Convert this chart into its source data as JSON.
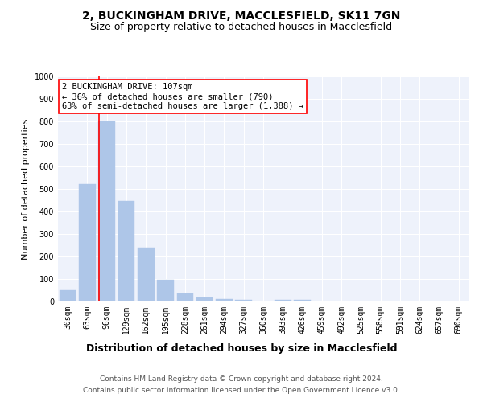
{
  "title1": "2, BUCKINGHAM DRIVE, MACCLESFIELD, SK11 7GN",
  "title2": "Size of property relative to detached houses in Macclesfield",
  "xlabel": "Distribution of detached houses by size in Macclesfield",
  "ylabel": "Number of detached properties",
  "categories": [
    "30sqm",
    "63sqm",
    "96sqm",
    "129sqm",
    "162sqm",
    "195sqm",
    "228sqm",
    "261sqm",
    "294sqm",
    "327sqm",
    "360sqm",
    "393sqm",
    "426sqm",
    "459sqm",
    "492sqm",
    "525sqm",
    "558sqm",
    "591sqm",
    "624sqm",
    "657sqm",
    "690sqm"
  ],
  "values": [
    50,
    520,
    800,
    445,
    238,
    98,
    35,
    18,
    10,
    8,
    0,
    8,
    8,
    0,
    0,
    0,
    0,
    0,
    0,
    0,
    0
  ],
  "bar_color": "#aec6e8",
  "bar_edge_color": "#aec6e8",
  "annotation_text": "2 BUCKINGHAM DRIVE: 107sqm\n← 36% of detached houses are smaller (790)\n63% of semi-detached houses are larger (1,388) →",
  "annotation_box_color": "white",
  "annotation_box_edge_color": "red",
  "vline_color": "red",
  "vline_x_index": 2.0,
  "ylim": [
    0,
    1000
  ],
  "yticks": [
    0,
    100,
    200,
    300,
    400,
    500,
    600,
    700,
    800,
    900,
    1000
  ],
  "background_color": "#eef2fb",
  "grid_color": "white",
  "footnote1": "Contains HM Land Registry data © Crown copyright and database right 2024.",
  "footnote2": "Contains public sector information licensed under the Open Government Licence v3.0.",
  "title1_fontsize": 10,
  "title2_fontsize": 9,
  "xlabel_fontsize": 9,
  "ylabel_fontsize": 8,
  "tick_fontsize": 7,
  "annotation_fontsize": 7.5,
  "footnote_fontsize": 6.5
}
